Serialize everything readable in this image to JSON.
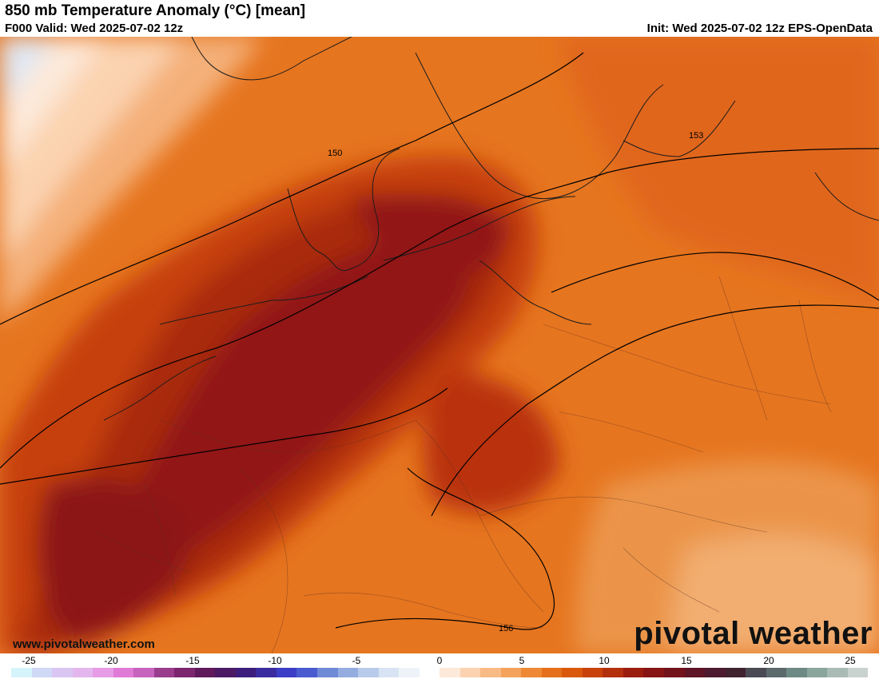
{
  "header": {
    "title": "850 mb Temperature Anomaly (°C) [mean]",
    "valid": "F000 Valid: Wed 2025-07-02 12z",
    "init": "Init: Wed 2025-07-02 12z EPS-OpenData"
  },
  "map": {
    "contour_labels": [
      "150",
      "153",
      "156"
    ],
    "website": "www.pivotalweather.com",
    "logo": "pivotal weather"
  },
  "colorbar": {
    "ticks": [
      "-25",
      "-20",
      "-15",
      "-10",
      "-5",
      "0",
      "5",
      "10",
      "15",
      "20",
      "25"
    ],
    "colors": [
      "#d6f4fb",
      "#cfd9f6",
      "#d9c6f2",
      "#e3b7ee",
      "#e69ce6",
      "#e07ad7",
      "#c763bd",
      "#9a3d8c",
      "#7c2670",
      "#601a5c",
      "#4b1a63",
      "#3e1e7c",
      "#3a2ca0",
      "#3b3dc4",
      "#4a5bd0",
      "#6f8ad6",
      "#94acdf",
      "#b9cbea",
      "#d8e4f4",
      "#eef3f9",
      "#ffffff",
      "#fde9d9",
      "#fbd3b0",
      "#f8bb85",
      "#f4a25c",
      "#ee8835",
      "#e56f1a",
      "#d9580c",
      "#c9420a",
      "#b3300d",
      "#9a1d10",
      "#871414",
      "#72121b",
      "#5e1526",
      "#4d1a2f",
      "#41232f",
      "#4a4a55",
      "#5c6a6e",
      "#6d8a84",
      "#8aa59c",
      "#aabbb6",
      "#c9d2cf"
    ]
  }
}
